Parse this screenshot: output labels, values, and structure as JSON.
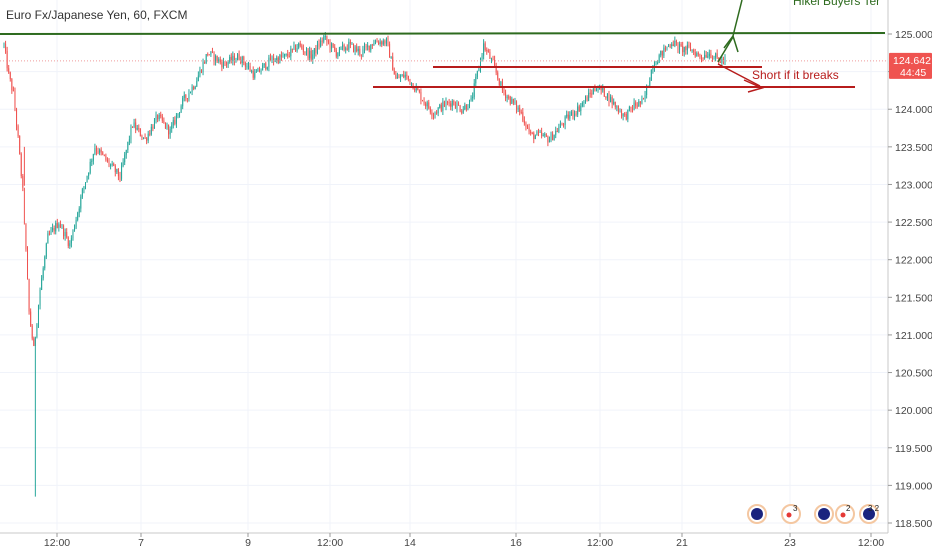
{
  "header": {
    "title": "Euro Fx/Japanese Yen, 60, FXCM"
  },
  "chart_data": {
    "type": "candlestick",
    "title": "Euro Fx/Japanese Yen, 60, FXCM",
    "yticks": [
      125.0,
      124.5,
      124.0,
      123.5,
      123.0,
      122.5,
      122.0,
      121.5,
      121.0,
      120.5,
      120.0,
      119.5,
      119.0,
      118.5
    ],
    "ylim": [
      118.5,
      125.4
    ],
    "xticks": [
      "12:00",
      "7",
      "9",
      "12:00",
      "14",
      "16",
      "12:00",
      "21",
      "23",
      "12:00"
    ],
    "last_price": "124.642",
    "countdown": "44:45",
    "anchors": [
      {
        "t": 0,
        "p": 124.85
      },
      {
        "t": 3,
        "p": 124.45
      },
      {
        "t": 6,
        "p": 124.2
      },
      {
        "t": 9,
        "p": 123.6
      },
      {
        "t": 12,
        "p": 122.9
      },
      {
        "t": 16,
        "p": 121.3
      },
      {
        "t": 19,
        "p": 120.8
      },
      {
        "t": 23,
        "p": 121.6
      },
      {
        "t": 28,
        "p": 122.3
      },
      {
        "t": 35,
        "p": 122.5
      },
      {
        "t": 42,
        "p": 122.2
      },
      {
        "t": 50,
        "p": 122.9
      },
      {
        "t": 58,
        "p": 123.5
      },
      {
        "t": 66,
        "p": 123.3
      },
      {
        "t": 74,
        "p": 123.1
      },
      {
        "t": 82,
        "p": 123.8
      },
      {
        "t": 90,
        "p": 123.6
      },
      {
        "t": 98,
        "p": 123.9
      },
      {
        "t": 106,
        "p": 123.7
      },
      {
        "t": 114,
        "p": 124.1
      },
      {
        "t": 122,
        "p": 124.35
      },
      {
        "t": 130,
        "p": 124.75
      },
      {
        "t": 140,
        "p": 124.6
      },
      {
        "t": 150,
        "p": 124.7
      },
      {
        "t": 160,
        "p": 124.45
      },
      {
        "t": 170,
        "p": 124.65
      },
      {
        "t": 180,
        "p": 124.7
      },
      {
        "t": 188,
        "p": 124.85
      },
      {
        "t": 196,
        "p": 124.7
      },
      {
        "t": 204,
        "p": 124.95
      },
      {
        "t": 212,
        "p": 124.75
      },
      {
        "t": 220,
        "p": 124.85
      },
      {
        "t": 228,
        "p": 124.75
      },
      {
        "t": 236,
        "p": 124.9
      },
      {
        "t": 244,
        "p": 124.9
      },
      {
        "t": 250,
        "p": 124.4
      },
      {
        "t": 256,
        "p": 124.45
      },
      {
        "t": 262,
        "p": 124.3
      },
      {
        "t": 268,
        "p": 124.1
      },
      {
        "t": 274,
        "p": 123.95
      },
      {
        "t": 280,
        "p": 124.05
      },
      {
        "t": 286,
        "p": 124.1
      },
      {
        "t": 292,
        "p": 124.0
      },
      {
        "t": 298,
        "p": 124.1
      },
      {
        "t": 306,
        "p": 124.85
      },
      {
        "t": 312,
        "p": 124.6
      },
      {
        "t": 318,
        "p": 124.25
      },
      {
        "t": 324,
        "p": 124.1
      },
      {
        "t": 330,
        "p": 123.95
      },
      {
        "t": 336,
        "p": 123.65
      },
      {
        "t": 342,
        "p": 123.65
      },
      {
        "t": 348,
        "p": 123.6
      },
      {
        "t": 354,
        "p": 123.75
      },
      {
        "t": 360,
        "p": 123.9
      },
      {
        "t": 366,
        "p": 124.0
      },
      {
        "t": 372,
        "p": 124.15
      },
      {
        "t": 378,
        "p": 124.3
      },
      {
        "t": 384,
        "p": 124.2
      },
      {
        "t": 390,
        "p": 124.05
      },
      {
        "t": 396,
        "p": 123.9
      },
      {
        "t": 402,
        "p": 124.05
      },
      {
        "t": 408,
        "p": 124.1
      },
      {
        "t": 414,
        "p": 124.6
      },
      {
        "t": 420,
        "p": 124.75
      },
      {
        "t": 426,
        "p": 124.9
      },
      {
        "t": 432,
        "p": 124.8
      },
      {
        "t": 438,
        "p": 124.8
      },
      {
        "t": 444,
        "p": 124.7
      },
      {
        "t": 450,
        "p": 124.75
      },
      {
        "t": 456,
        "p": 124.65
      },
      {
        "t": 460,
        "p": 124.64
      }
    ],
    "drawings": [
      {
        "label": "",
        "color": "#2e6b1f",
        "from": {
          "t": 0,
          "p": 125.0
        },
        "to": {
          "t": 590,
          "p": 125.0
        }
      },
      {
        "label": "",
        "color": "#b71c1c",
        "from": {
          "t": 285,
          "p": 124.6
        },
        "to": {
          "t": 483,
          "p": 124.6
        }
      },
      {
        "label": "",
        "color": "#b71c1c",
        "from": {
          "t": 245,
          "p": 124.28
        },
        "to": {
          "t": 573,
          "p": 124.28
        }
      },
      {
        "label": "Short if it breaks",
        "color": "#b71c1c"
      },
      {
        "label": "Hikel Buyers Ter",
        "color": "#2e6b1f"
      }
    ],
    "indicators": {
      "badge1": "3",
      "badge2": "2",
      "badge3": "3 2"
    },
    "colors": {
      "up": "#26a69a",
      "down": "#ef5350",
      "green_line": "#2e6b1f",
      "red_line": "#b71c1c",
      "price_tag": "#ef5350"
    }
  }
}
